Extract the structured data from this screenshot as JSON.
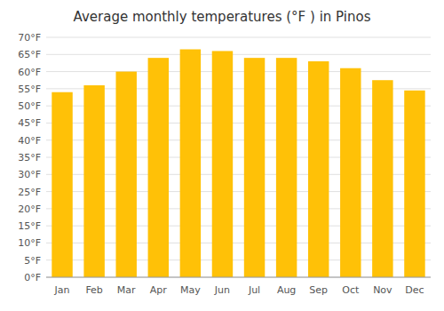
{
  "chart_data": {
    "type": "bar",
    "title": "Average monthly temperatures (°F ) in Pinos",
    "categories": [
      "Jan",
      "Feb",
      "Mar",
      "Apr",
      "May",
      "Jun",
      "Jul",
      "Aug",
      "Sep",
      "Oct",
      "Nov",
      "Dec"
    ],
    "values": [
      54,
      56,
      60,
      64,
      66.5,
      66,
      64,
      64,
      63,
      61,
      57.5,
      54.5
    ],
    "color": "#FFC107",
    "ylim": [
      0,
      70
    ],
    "yticks": [
      {
        "value": 0,
        "label": "0°F"
      },
      {
        "value": 5,
        "label": "5°F"
      },
      {
        "value": 10,
        "label": "10°F"
      },
      {
        "value": 15,
        "label": "15°F"
      },
      {
        "value": 20,
        "label": "20°F"
      },
      {
        "value": 25,
        "label": "25°F"
      },
      {
        "value": 30,
        "label": "30°F"
      },
      {
        "value": 35,
        "label": "35°F"
      },
      {
        "value": 40,
        "label": "40°F"
      },
      {
        "value": 45,
        "label": "45°F"
      },
      {
        "value": 50,
        "label": "50°F"
      },
      {
        "value": 55,
        "label": "55°F"
      },
      {
        "value": 60,
        "label": "60°F"
      },
      {
        "value": 65,
        "label": "65°F"
      },
      {
        "value": 70,
        "label": "70°F"
      }
    ],
    "grid": true
  }
}
